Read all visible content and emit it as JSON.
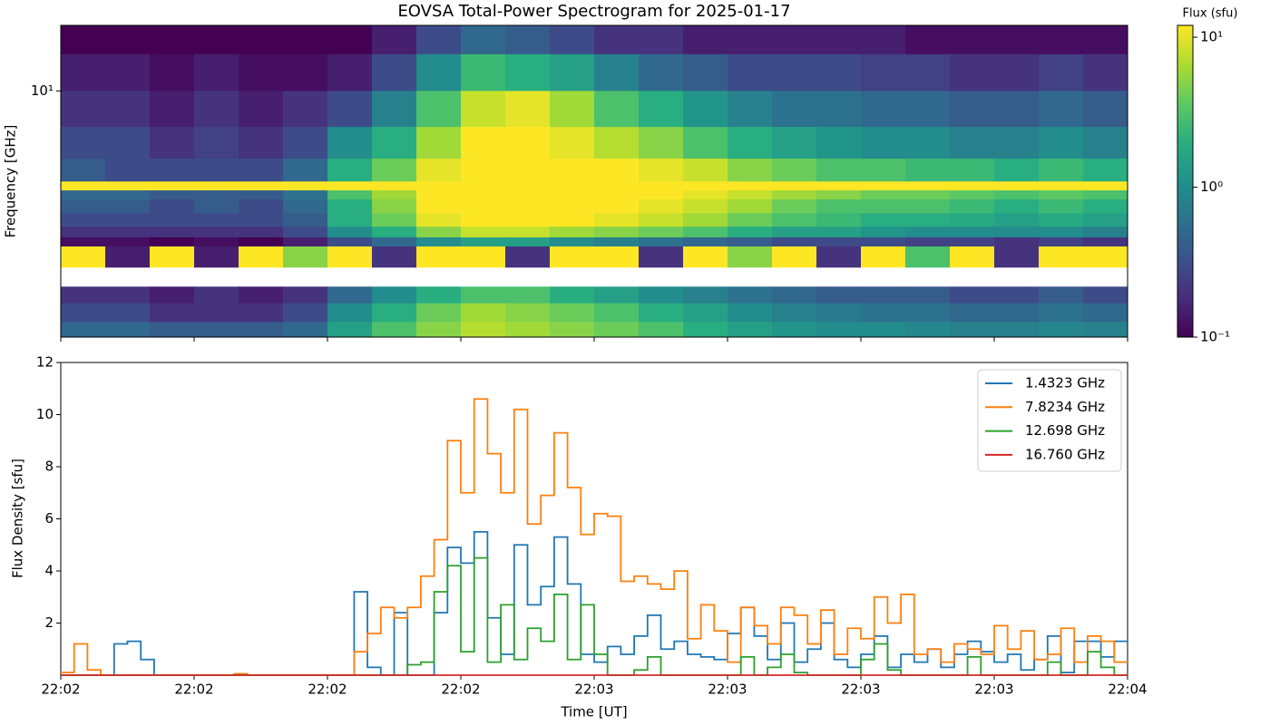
{
  "chart_data": [
    {
      "type": "heatmap",
      "title": "EOVSA Total-Power Spectrogram for 2025-01-17",
      "y_label": "Frequency [GHz]",
      "colorbar_label": "Flux (sfu)",
      "ylog": true,
      "ylim": [
        1.1,
        18
      ],
      "yticks": [
        {
          "value": 10,
          "label": "10¹"
        }
      ],
      "clim": [
        0.1,
        12
      ],
      "cticks": [
        {
          "value": 0.1,
          "label": "10⁻¹"
        },
        {
          "value": 1,
          "label": "10⁰"
        },
        {
          "value": 10,
          "label": "10¹"
        }
      ],
      "x_bins": [
        0,
        5,
        10,
        15,
        20,
        25,
        30,
        35,
        40,
        45,
        50,
        55,
        60,
        65,
        70,
        75,
        80,
        85,
        90,
        95,
        100,
        105,
        110,
        115,
        120
      ],
      "y_bins": [
        18,
        13.9,
        10,
        7.24,
        5.45,
        4.44,
        4.1,
        3.78,
        3.34,
        2.96,
        2.69,
        2.48,
        2.06,
        1.73,
        1.49,
        1.26,
        1.1
      ],
      "values": [
        [
          0.1,
          0.1,
          0.1,
          0.1,
          0.1,
          0.1,
          0.1,
          0.15,
          0.3,
          0.5,
          0.4,
          0.3,
          0.2,
          0.2,
          0.15,
          0.15,
          0.15,
          0.15,
          0.15,
          0.12,
          0.12,
          0.12,
          0.12,
          0.12
        ],
        [
          0.15,
          0.15,
          0.12,
          0.15,
          0.12,
          0.12,
          0.15,
          0.3,
          1,
          2.5,
          2,
          1.5,
          0.8,
          0.5,
          0.4,
          0.3,
          0.3,
          0.3,
          0.25,
          0.25,
          0.2,
          0.2,
          0.25,
          0.2
        ],
        [
          0.2,
          0.2,
          0.15,
          0.2,
          0.15,
          0.2,
          0.3,
          0.8,
          3,
          8,
          10,
          6,
          3,
          2,
          1.2,
          0.8,
          0.6,
          0.6,
          0.5,
          0.5,
          0.4,
          0.4,
          0.5,
          0.4
        ],
        [
          0.3,
          0.3,
          0.2,
          0.25,
          0.2,
          0.3,
          1,
          2,
          6,
          12,
          13,
          10,
          7,
          5,
          3,
          2,
          1.5,
          1.2,
          1,
          1,
          0.8,
          0.8,
          1,
          0.8
        ],
        [
          0.4,
          0.3,
          0.3,
          0.3,
          0.3,
          0.5,
          2,
          4,
          10,
          14,
          14,
          13,
          12,
          10,
          8,
          5,
          4,
          3,
          3,
          2.5,
          2.5,
          2,
          2.5,
          2
        ],
        [
          14,
          14,
          14,
          14,
          14,
          14,
          14,
          14,
          14,
          14,
          14,
          14,
          14,
          14,
          14,
          14,
          14,
          14,
          14,
          14,
          14,
          14,
          14,
          14
        ],
        [
          0.5,
          0.5,
          0.4,
          0.4,
          0.4,
          0.6,
          3,
          6,
          13,
          14,
          14,
          14,
          13,
          12,
          10,
          8,
          6,
          5,
          4,
          4,
          3.5,
          3,
          3.5,
          3
        ],
        [
          0.4,
          0.4,
          0.3,
          0.4,
          0.3,
          0.5,
          2,
          5,
          12,
          14,
          14,
          13,
          12,
          10,
          8,
          6,
          4,
          3,
          3,
          3,
          2.5,
          2,
          2.5,
          2
        ],
        [
          0.3,
          0.3,
          0.3,
          0.3,
          0.3,
          0.4,
          2,
          4,
          10,
          14,
          14,
          12,
          10,
          8,
          6,
          4,
          3,
          2.5,
          2,
          2,
          1.8,
          1.5,
          1.8,
          1.5
        ],
        [
          0.2,
          0.2,
          0.2,
          0.2,
          0.2,
          0.3,
          1,
          2,
          5,
          8,
          8,
          6,
          5,
          4,
          3,
          2,
          1.5,
          1.5,
          1.2,
          1,
          1,
          1,
          1,
          0.8
        ],
        [
          0.12,
          0.12,
          0.1,
          0.12,
          0.1,
          0.15,
          0.3,
          0.5,
          1,
          1.5,
          1.5,
          1,
          0.8,
          0.6,
          0.5,
          0.4,
          0.3,
          0.3,
          0.3,
          0.25,
          0.25,
          0.2,
          0.25,
          0.2
        ],
        [
          14,
          0.15,
          14,
          0.15,
          14,
          5,
          14,
          0.2,
          14,
          14,
          0.2,
          14,
          14,
          0.2,
          14,
          5,
          14,
          0.2,
          14,
          3,
          14,
          0.2,
          14,
          14
        ],
        [
          null,
          null,
          null,
          null,
          null,
          null,
          null,
          null,
          null,
          null,
          null,
          null,
          null,
          null,
          null,
          null,
          null,
          null,
          null,
          null,
          null,
          null,
          null,
          null
        ],
        [
          0.2,
          0.2,
          0.15,
          0.2,
          0.15,
          0.2,
          0.5,
          1,
          2,
          3,
          3,
          2,
          1.5,
          1,
          0.8,
          0.6,
          0.5,
          0.4,
          0.4,
          0.4,
          0.3,
          0.3,
          0.4,
          0.3
        ],
        [
          0.3,
          0.3,
          0.2,
          0.2,
          0.2,
          0.3,
          1,
          2,
          4,
          6,
          5,
          4,
          3,
          2,
          1.5,
          1,
          0.8,
          0.7,
          0.6,
          0.6,
          0.5,
          0.5,
          0.6,
          0.5
        ],
        [
          0.5,
          0.5,
          0.4,
          0.4,
          0.4,
          0.5,
          1.5,
          3,
          5,
          7,
          6,
          5,
          4,
          3,
          2,
          1.5,
          1.2,
          1,
          1,
          0.9,
          0.8,
          0.8,
          0.9,
          0.8
        ]
      ]
    },
    {
      "type": "step",
      "x_label": "Time [UT]",
      "y_label": "Flux Density [sfu]",
      "xlim": [
        0,
        120
      ],
      "xticks": [
        {
          "value": 0,
          "label": "22:02"
        },
        {
          "value": 15,
          "label": "22:02"
        },
        {
          "value": 30,
          "label": "22:02"
        },
        {
          "value": 45,
          "label": "22:02"
        },
        {
          "value": 60,
          "label": "22:03"
        },
        {
          "value": 75,
          "label": "22:03"
        },
        {
          "value": 90,
          "label": "22:03"
        },
        {
          "value": 105,
          "label": "22:03"
        },
        {
          "value": 120,
          "label": "22:04"
        }
      ],
      "ylim": [
        0,
        12
      ],
      "yticks": [
        2,
        4,
        6,
        8,
        10,
        12
      ],
      "legend": "upper right",
      "x": [
        0,
        1.5,
        3,
        4.5,
        6,
        7.5,
        9,
        10.5,
        12,
        13.5,
        15,
        16.5,
        18,
        19.5,
        21,
        22.5,
        24,
        25.5,
        27,
        28.5,
        30,
        31.5,
        33,
        34.5,
        36,
        37.5,
        39,
        40.5,
        42,
        43.5,
        45,
        46.5,
        48,
        49.5,
        51,
        52.5,
        54,
        55.5,
        57,
        58.5,
        60,
        61.5,
        63,
        64.5,
        66,
        67.5,
        69,
        70.5,
        72,
        73.5,
        75,
        76.5,
        78,
        79.5,
        81,
        82.5,
        84,
        85.5,
        87,
        88.5,
        90,
        91.5,
        93,
        94.5,
        96,
        97.5,
        99,
        100.5,
        102,
        103.5,
        105,
        106.5,
        108,
        109.5,
        111,
        112.5,
        114,
        115.5,
        117,
        118.5
      ],
      "series": [
        {
          "name": "1.4323 GHz",
          "color": "#1f77b4",
          "values": [
            0,
            0,
            0,
            0,
            1.2,
            1.3,
            0.6,
            0,
            0,
            0,
            0,
            0,
            0,
            0,
            0,
            0,
            0,
            0,
            0,
            0,
            0,
            0,
            3.2,
            0.3,
            0,
            2.4,
            0,
            0,
            2.4,
            4.9,
            4.3,
            5.5,
            2.2,
            0.8,
            5.0,
            2.7,
            3.4,
            5.3,
            3.5,
            0.8,
            0.5,
            1.1,
            0.8,
            1.5,
            2.3,
            1.0,
            1.3,
            0.8,
            0.7,
            0.6,
            1.6,
            2.6,
            1.5,
            0.6,
            2.0,
            0.5,
            1.0,
            2.0,
            0.6,
            0.3,
            0.8,
            1.5,
            0.3,
            0.8,
            0.5,
            1.0,
            0.3,
            0.8,
            1.3,
            0.9,
            0.5,
            0.8,
            0.2,
            0.6,
            1.5,
            0.1,
            1.3,
            1.3,
            0.7,
            1.3
          ]
        },
        {
          "name": "7.8234 GHz",
          "color": "#ff7f0e",
          "values": [
            0.1,
            1.2,
            0.2,
            0,
            0,
            0,
            0,
            0,
            0,
            0,
            0,
            0,
            0,
            0.05,
            0,
            0,
            0,
            0,
            0,
            0,
            0,
            0,
            0.9,
            1.6,
            2.6,
            2.2,
            2.6,
            3.8,
            5.2,
            9.0,
            7.0,
            10.6,
            8.5,
            7.0,
            10.2,
            5.8,
            6.9,
            9.3,
            7.2,
            5.4,
            6.2,
            6.1,
            3.6,
            3.8,
            3.5,
            3.3,
            4.0,
            1.4,
            2.7,
            1.7,
            0.5,
            2.6,
            1.9,
            1.2,
            2.6,
            2.3,
            1.2,
            2.5,
            0.8,
            1.8,
            1.4,
            3.0,
            2.0,
            3.1,
            0.8,
            1.0,
            0.5,
            1.2,
            1.0,
            0.8,
            1.9,
            1.0,
            1.7,
            0.6,
            0.8,
            1.8,
            0.5,
            1.5,
            1.3,
            0.5
          ]
        },
        {
          "name": "12.698 GHz",
          "color": "#2ca02c",
          "values": [
            0,
            0,
            0,
            0,
            0,
            0,
            0,
            0,
            0,
            0,
            0,
            0,
            0,
            0,
            0,
            0,
            0,
            0,
            0,
            0,
            0,
            0,
            0,
            0,
            0,
            0,
            0.4,
            0.5,
            3.2,
            4.2,
            0.9,
            4.5,
            0.5,
            2.7,
            0.6,
            1.8,
            1.3,
            3.1,
            0.6,
            2.7,
            0.8,
            0,
            0,
            0.2,
            0.7,
            0,
            0,
            0,
            0,
            0,
            0,
            0.7,
            0,
            0.3,
            0.8,
            0.1,
            0,
            0,
            0,
            0,
            0.6,
            1.2,
            0.2,
            0,
            0,
            0,
            0,
            0,
            0.7,
            0,
            0,
            0,
            0,
            0,
            0.5,
            0,
            0,
            0.9,
            0.3,
            0
          ]
        },
        {
          "name": "16.760 GHz",
          "color": "#d62728",
          "values": [
            0,
            0,
            0,
            0,
            0,
            0,
            0,
            0,
            0,
            0,
            0,
            0,
            0,
            0,
            0,
            0,
            0,
            0,
            0,
            0,
            0,
            0,
            0,
            0,
            0,
            0,
            0,
            0,
            0,
            0,
            0,
            0,
            0,
            0,
            0,
            0,
            0,
            0,
            0,
            0,
            0,
            0,
            0,
            0,
            0,
            0,
            0,
            0,
            0,
            0,
            0,
            0,
            0,
            0,
            0,
            0,
            0,
            0,
            0,
            0,
            0,
            0,
            0,
            0,
            0,
            0,
            0,
            0,
            0,
            0,
            0,
            0,
            0,
            0,
            0,
            0,
            0,
            0,
            0,
            0
          ]
        }
      ]
    }
  ]
}
